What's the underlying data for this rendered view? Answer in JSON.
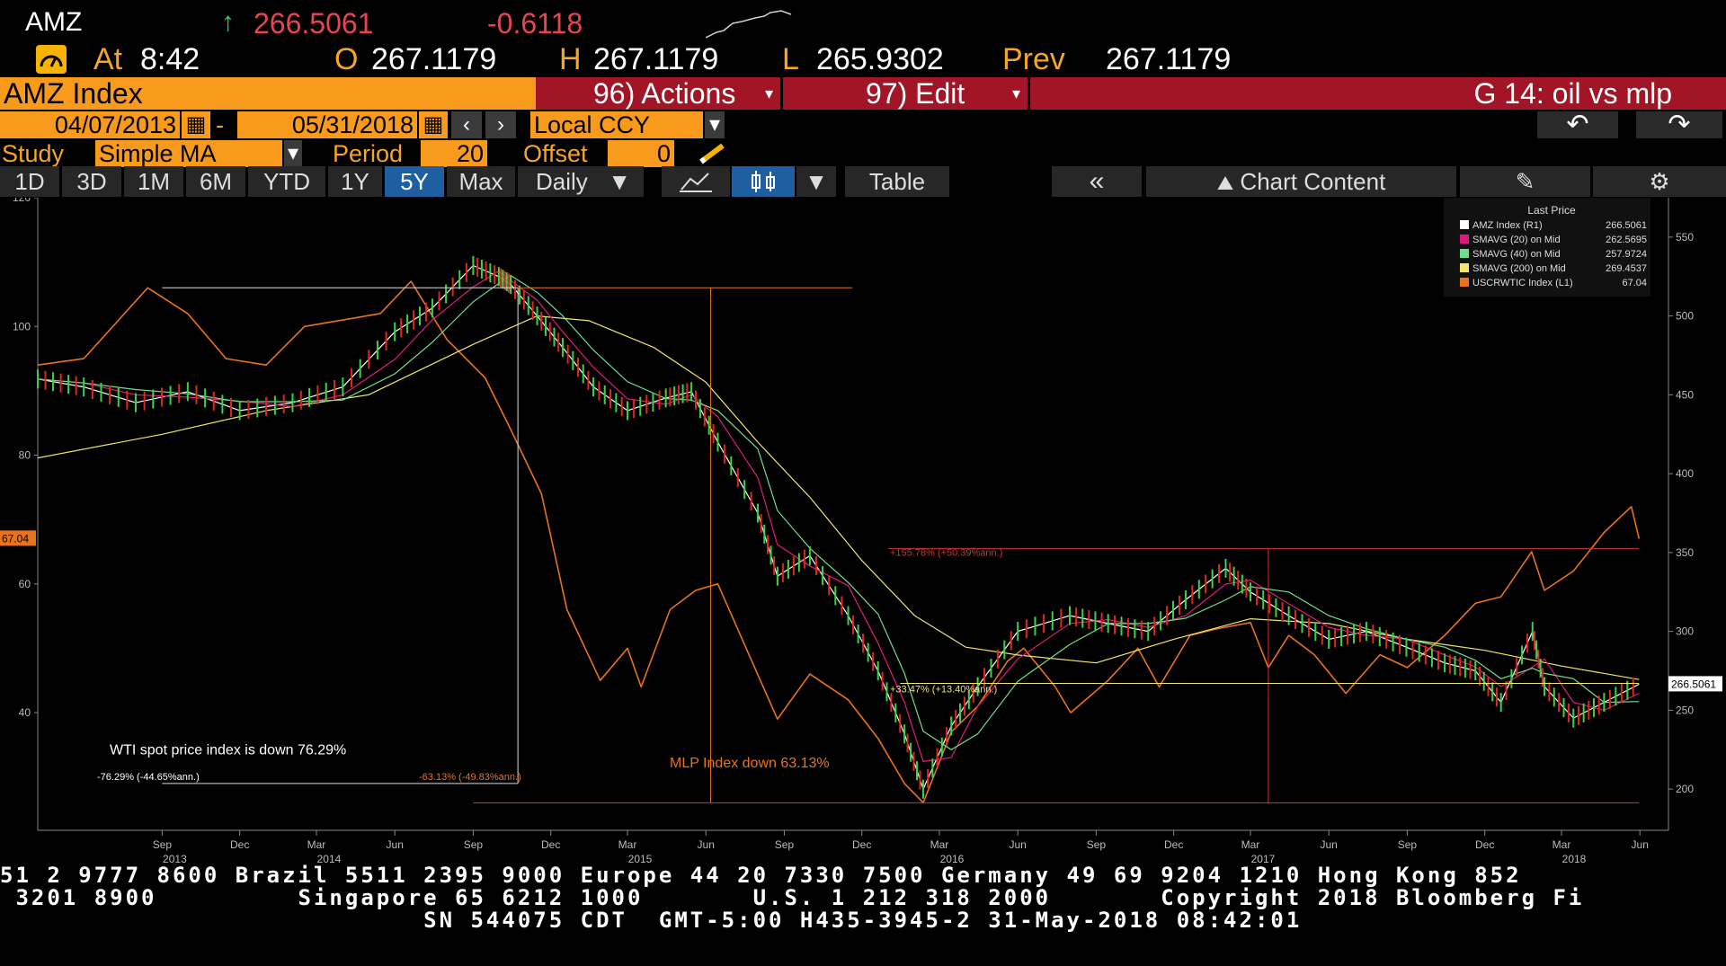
{
  "header": {
    "ticker": "AMZ",
    "last_arrow": "↑",
    "last": "266.5061",
    "change": "-0.6118",
    "at_label": "At",
    "time": "8:42",
    "open_label": "O",
    "open": "267.1179",
    "high_label": "H",
    "high": "267.1179",
    "low_label": "L",
    "low": "265.9302",
    "prev_label": "Prev",
    "prev": "267.1179"
  },
  "toolbar": {
    "security": "AMZ Index",
    "actions": "96) Actions",
    "edit": "97) Edit",
    "chart_name": "G 14: oil vs mlp",
    "start_date": "04/07/2013",
    "date_sep": "-",
    "end_date": "05/31/2018",
    "currency": "Local CCY",
    "study_label": "Study",
    "study": "Simple MA",
    "period_label": "Period",
    "period": "20",
    "offset_label": "Offset",
    "offset": "0"
  },
  "tabs": [
    {
      "label": "1D",
      "active": false
    },
    {
      "label": "3D",
      "active": false
    },
    {
      "label": "1M",
      "active": false
    },
    {
      "label": "6M",
      "active": false
    },
    {
      "label": "YTD",
      "active": false
    },
    {
      "label": "1Y",
      "active": false
    },
    {
      "label": "5Y",
      "active": true
    },
    {
      "label": "Max",
      "active": false
    }
  ],
  "freq": "Daily",
  "table_label": "Table",
  "chart_content_label": "Chart Content",
  "icons": [
    "back-arrow-icon",
    "forward-arrow-icon",
    "calendar-icon",
    "chevron-left-icon",
    "chevron-right-icon",
    "pencil-icon",
    "line-chart-icon",
    "candlestick-icon",
    "double-chevron-left-icon",
    "gear-icon",
    "edit-chart-icon",
    "gauge-icon"
  ],
  "chart_data": {
    "type": "line",
    "title": "",
    "xlabel": "",
    "ylabel": "",
    "left_axis": {
      "ticks": [
        40,
        60,
        80,
        100,
        120
      ],
      "range": [
        22,
        120
      ]
    },
    "right_axis": {
      "ticks": [
        200,
        250,
        300,
        350,
        400,
        450,
        500,
        550
      ],
      "range": [
        175,
        575
      ]
    },
    "x_ticks": [
      {
        "label": "Sep",
        "year": "2013",
        "date": "2013-09-01"
      },
      {
        "label": "Dec",
        "year": "",
        "date": "2013-12-01"
      },
      {
        "label": "Mar",
        "year": "2014",
        "date": "2014-03-01"
      },
      {
        "label": "Jun",
        "year": "",
        "date": "2014-06-01"
      },
      {
        "label": "Sep",
        "year": "",
        "date": "2014-09-01"
      },
      {
        "label": "Dec",
        "year": "",
        "date": "2014-12-01"
      },
      {
        "label": "Mar",
        "year": "2015",
        "date": "2015-03-01"
      },
      {
        "label": "Jun",
        "year": "",
        "date": "2015-06-01"
      },
      {
        "label": "Sep",
        "year": "",
        "date": "2015-09-01"
      },
      {
        "label": "Dec",
        "year": "",
        "date": "2015-12-01"
      },
      {
        "label": "Mar",
        "year": "2016",
        "date": "2016-03-01"
      },
      {
        "label": "Jun",
        "year": "",
        "date": "2016-06-01"
      },
      {
        "label": "Sep",
        "year": "",
        "date": "2016-09-01"
      },
      {
        "label": "Dec",
        "year": "",
        "date": "2016-12-01"
      },
      {
        "label": "Mar",
        "year": "2017",
        "date": "2017-03-01"
      },
      {
        "label": "Jun",
        "year": "",
        "date": "2017-06-01"
      },
      {
        "label": "Sep",
        "year": "",
        "date": "2017-09-01"
      },
      {
        "label": "Dec",
        "year": "",
        "date": "2017-12-01"
      },
      {
        "label": "Mar",
        "year": "2018",
        "date": "2018-03-01"
      },
      {
        "label": "Jun",
        "year": "",
        "date": "2018-06-01"
      }
    ],
    "legend": {
      "title": "Last Price",
      "placement": "top-right",
      "items": [
        {
          "name": "AMZ Index  (R1)",
          "value": "266.5061",
          "color": "#ffffff"
        },
        {
          "name": "SMAVG (20) on Mid",
          "value": "262.5695",
          "color": "#e0197d"
        },
        {
          "name": "SMAVG (40) on Mid",
          "value": "257.9724",
          "color": "#6ee08c"
        },
        {
          "name": "SMAVG (200) on Mid",
          "value": "269.4537",
          "color": "#f2e56b"
        },
        {
          "name": "USCRWTIC Index  (L1)",
          "value": "67.04",
          "color": "#e8731c"
        }
      ]
    },
    "series": [
      {
        "name": "USCRWTIC Index  (L1)",
        "axis": "left",
        "color": "#e8731c",
        "x": [
          "2013-04-08",
          "2013-06-01",
          "2013-08-15",
          "2013-10-01",
          "2013-11-15",
          "2014-01-01",
          "2014-02-15",
          "2014-04-01",
          "2014-05-15",
          "2014-06-20",
          "2014-08-01",
          "2014-09-15",
          "2014-10-15",
          "2014-11-20",
          "2014-12-20",
          "2015-01-28",
          "2015-03-01",
          "2015-03-17",
          "2015-04-20",
          "2015-05-20",
          "2015-06-15",
          "2015-07-15",
          "2015-08-24",
          "2015-10-01",
          "2015-11-15",
          "2015-12-20",
          "2016-01-20",
          "2016-02-11",
          "2016-03-15",
          "2016-04-15",
          "2016-05-20",
          "2016-06-08",
          "2016-07-15",
          "2016-08-02",
          "2016-09-15",
          "2016-10-20",
          "2016-11-14",
          "2016-12-20",
          "2017-01-20",
          "2017-03-01",
          "2017-03-22",
          "2017-04-15",
          "2017-05-15",
          "2017-06-21",
          "2017-07-31",
          "2017-09-01",
          "2017-10-15",
          "2017-11-20",
          "2017-12-20",
          "2018-01-25",
          "2018-02-09",
          "2018-03-15",
          "2018-04-20",
          "2018-05-22",
          "2018-05-31"
        ],
        "values": [
          94,
          95,
          106,
          102,
          95,
          94,
          100,
          101,
          102,
          107,
          98,
          92,
          84,
          74,
          56,
          45,
          50,
          44,
          56,
          59,
          60,
          51,
          39,
          46,
          42,
          36,
          29,
          26,
          37,
          41,
          48,
          50,
          44,
          40,
          45,
          50,
          44,
          52,
          53,
          54,
          47,
          52,
          49,
          43,
          49,
          47,
          52,
          57,
          58,
          65,
          59,
          62,
          68,
          72,
          67.04
        ]
      },
      {
        "name": "AMZ Index  (R1)",
        "axis": "right",
        "color": "#ffffff",
        "x": [
          "2013-04-08",
          "2013-06-01",
          "2013-08-01",
          "2013-10-01",
          "2013-12-01",
          "2014-02-01",
          "2014-04-01",
          "2014-06-01",
          "2014-07-15",
          "2014-09-01",
          "2014-10-01",
          "2014-10-15",
          "2014-11-15",
          "2014-12-15",
          "2015-01-20",
          "2015-03-01",
          "2015-04-15",
          "2015-05-15",
          "2015-06-15",
          "2015-08-01",
          "2015-08-24",
          "2015-10-01",
          "2015-11-15",
          "2015-12-20",
          "2016-01-20",
          "2016-02-11",
          "2016-03-15",
          "2016-04-15",
          "2016-06-01",
          "2016-08-01",
          "2016-09-15",
          "2016-11-01",
          "2016-12-15",
          "2017-01-31",
          "2017-03-01",
          "2017-04-15",
          "2017-06-01",
          "2017-07-15",
          "2017-08-31",
          "2017-10-15",
          "2017-11-20",
          "2017-12-20",
          "2018-01-26",
          "2018-02-09",
          "2018-03-15",
          "2018-04-20",
          "2018-05-31"
        ],
        "values": [
          460,
          455,
          445,
          452,
          440,
          445,
          455,
          490,
          505,
          532,
          525,
          520,
          500,
          480,
          455,
          440,
          448,
          452,
          420,
          375,
          335,
          348,
          310,
          275,
          235,
          200,
          240,
          265,
          300,
          310,
          305,
          300,
          320,
          340,
          325,
          310,
          295,
          300,
          290,
          280,
          275,
          255,
          300,
          265,
          245,
          255,
          266.5061
        ]
      },
      {
        "name": "SMAVG (200) on Mid",
        "axis": "right",
        "color": "#f2e56b",
        "x": [
          "2013-04-08",
          "2013-09-01",
          "2014-01-01",
          "2014-05-01",
          "2014-09-01",
          "2014-11-15",
          "2015-01-15",
          "2015-04-01",
          "2015-06-01",
          "2015-08-01",
          "2015-10-01",
          "2015-12-01",
          "2016-02-01",
          "2016-04-01",
          "2016-06-01",
          "2016-09-01",
          "2016-12-01",
          "2017-03-01",
          "2017-06-01",
          "2017-09-01",
          "2017-12-01",
          "2018-03-01",
          "2018-05-31"
        ],
        "values": [
          410,
          425,
          440,
          450,
          482,
          500,
          497,
          480,
          458,
          420,
          385,
          345,
          310,
          290,
          285,
          280,
          295,
          308,
          305,
          295,
          288,
          278,
          269.4537
        ]
      }
    ],
    "annotations": [
      {
        "text": "WTI spot price index is down 76.29%"
      },
      {
        "text": "-76.29% (-44.65%ann.)"
      },
      {
        "text": "-63.13% (-49.83%ann.)"
      },
      {
        "text": "MLP Index down 63.13%"
      },
      {
        "text": "+155.78% (+50.39%ann.)"
      },
      {
        "text": "+33.47% (+13.40%ann.)"
      }
    ],
    "left_last_label": "67.04",
    "right_last_label": "266.5061",
    "grid": false
  },
  "footer": {
    "line1": "51 2 9777 8600 Brazil 5511 2395 9000 Europe 44 20 7330 7500 Germany 49 69 9204 1210 Hong Kong 852",
    "line2": " 3201 8900         Singapore 65 6212 1000       U.S. 1 212 318 2000       Copyright 2018 Bloomberg Fi",
    "line3": "                           SN 544075 CDT  GMT-5:00 H435-3945-2 31-May-2018 08:42:01"
  }
}
